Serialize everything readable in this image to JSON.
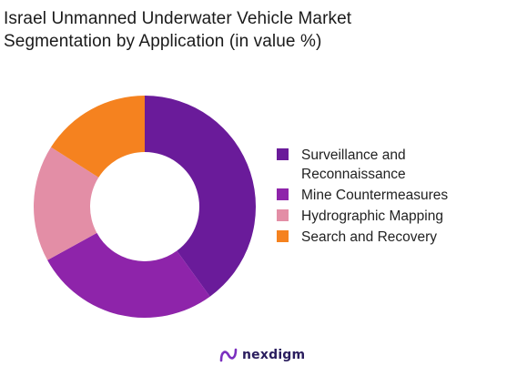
{
  "title_lines": [
    "Israel Unmanned Underwater Vehicle Market",
    "Segmentation by Application (in value %)"
  ],
  "brand": {
    "name": "nexdigm",
    "icon": "nexdigm-logo-icon"
  },
  "chart_data": {
    "type": "pie",
    "variant": "donut",
    "title": "Israel Unmanned Underwater Vehicle Market Segmentation by Application (in value %)",
    "categories": [
      "Surveillance and Reconnaissance",
      "Mine Countermeasures",
      "Hydrographic Mapping",
      "Search and Recovery"
    ],
    "values": [
      40,
      27,
      17,
      16
    ],
    "colors": [
      "#6a1b9a",
      "#8e24aa",
      "#e38ea6",
      "#f5821f"
    ],
    "legend_position": "right"
  }
}
